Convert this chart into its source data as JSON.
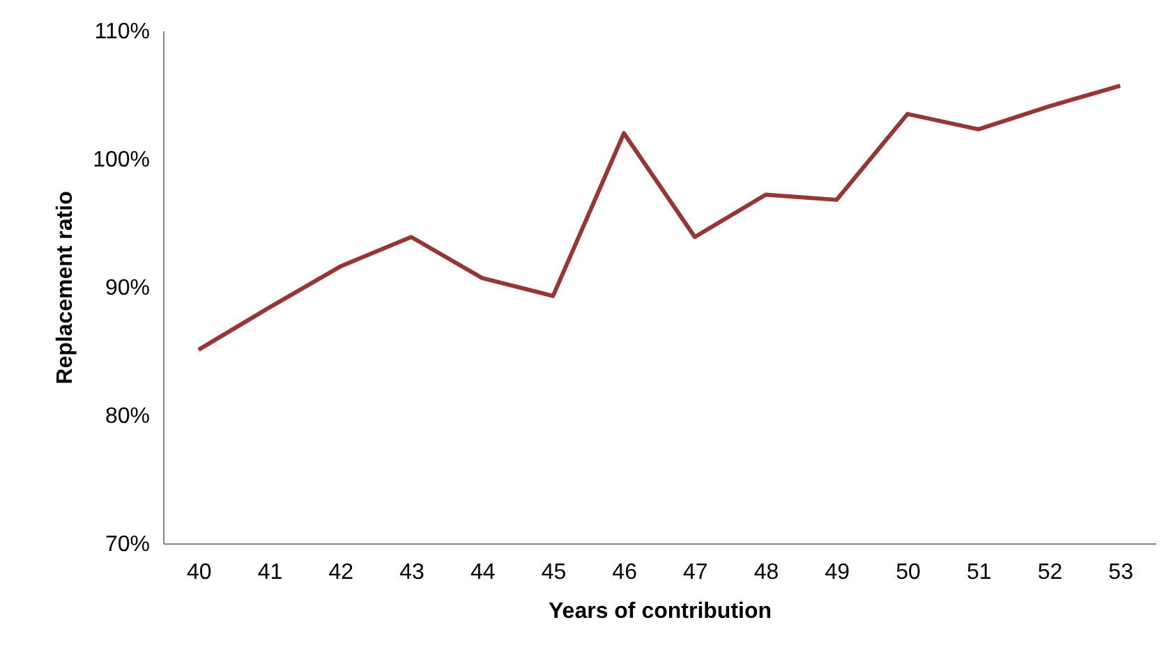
{
  "chart_data": {
    "type": "line",
    "xlabel": "Years of contribution",
    "ylabel": "Replacement ratio",
    "categories": [
      "40",
      "41",
      "42",
      "43",
      "44",
      "45",
      "46",
      "47",
      "48",
      "49",
      "50",
      "51",
      "52",
      "53"
    ],
    "series": [
      {
        "color": "#953735",
        "values": [
          85.1,
          88.4,
          91.6,
          93.9,
          90.7,
          89.3,
          102.0,
          93.9,
          97.2,
          96.8,
          103.5,
          102.3,
          104.1,
          105.7
        ]
      }
    ],
    "ylim": [
      70,
      110
    ],
    "yticks": [
      {
        "value": 70,
        "label": "70%"
      },
      {
        "value": 80,
        "label": "80%"
      },
      {
        "value": 90,
        "label": "90%"
      },
      {
        "value": 100,
        "label": "100%"
      },
      {
        "value": 110,
        "label": "110%"
      }
    ],
    "grid": false,
    "marker": "none",
    "line_style": "solid"
  }
}
